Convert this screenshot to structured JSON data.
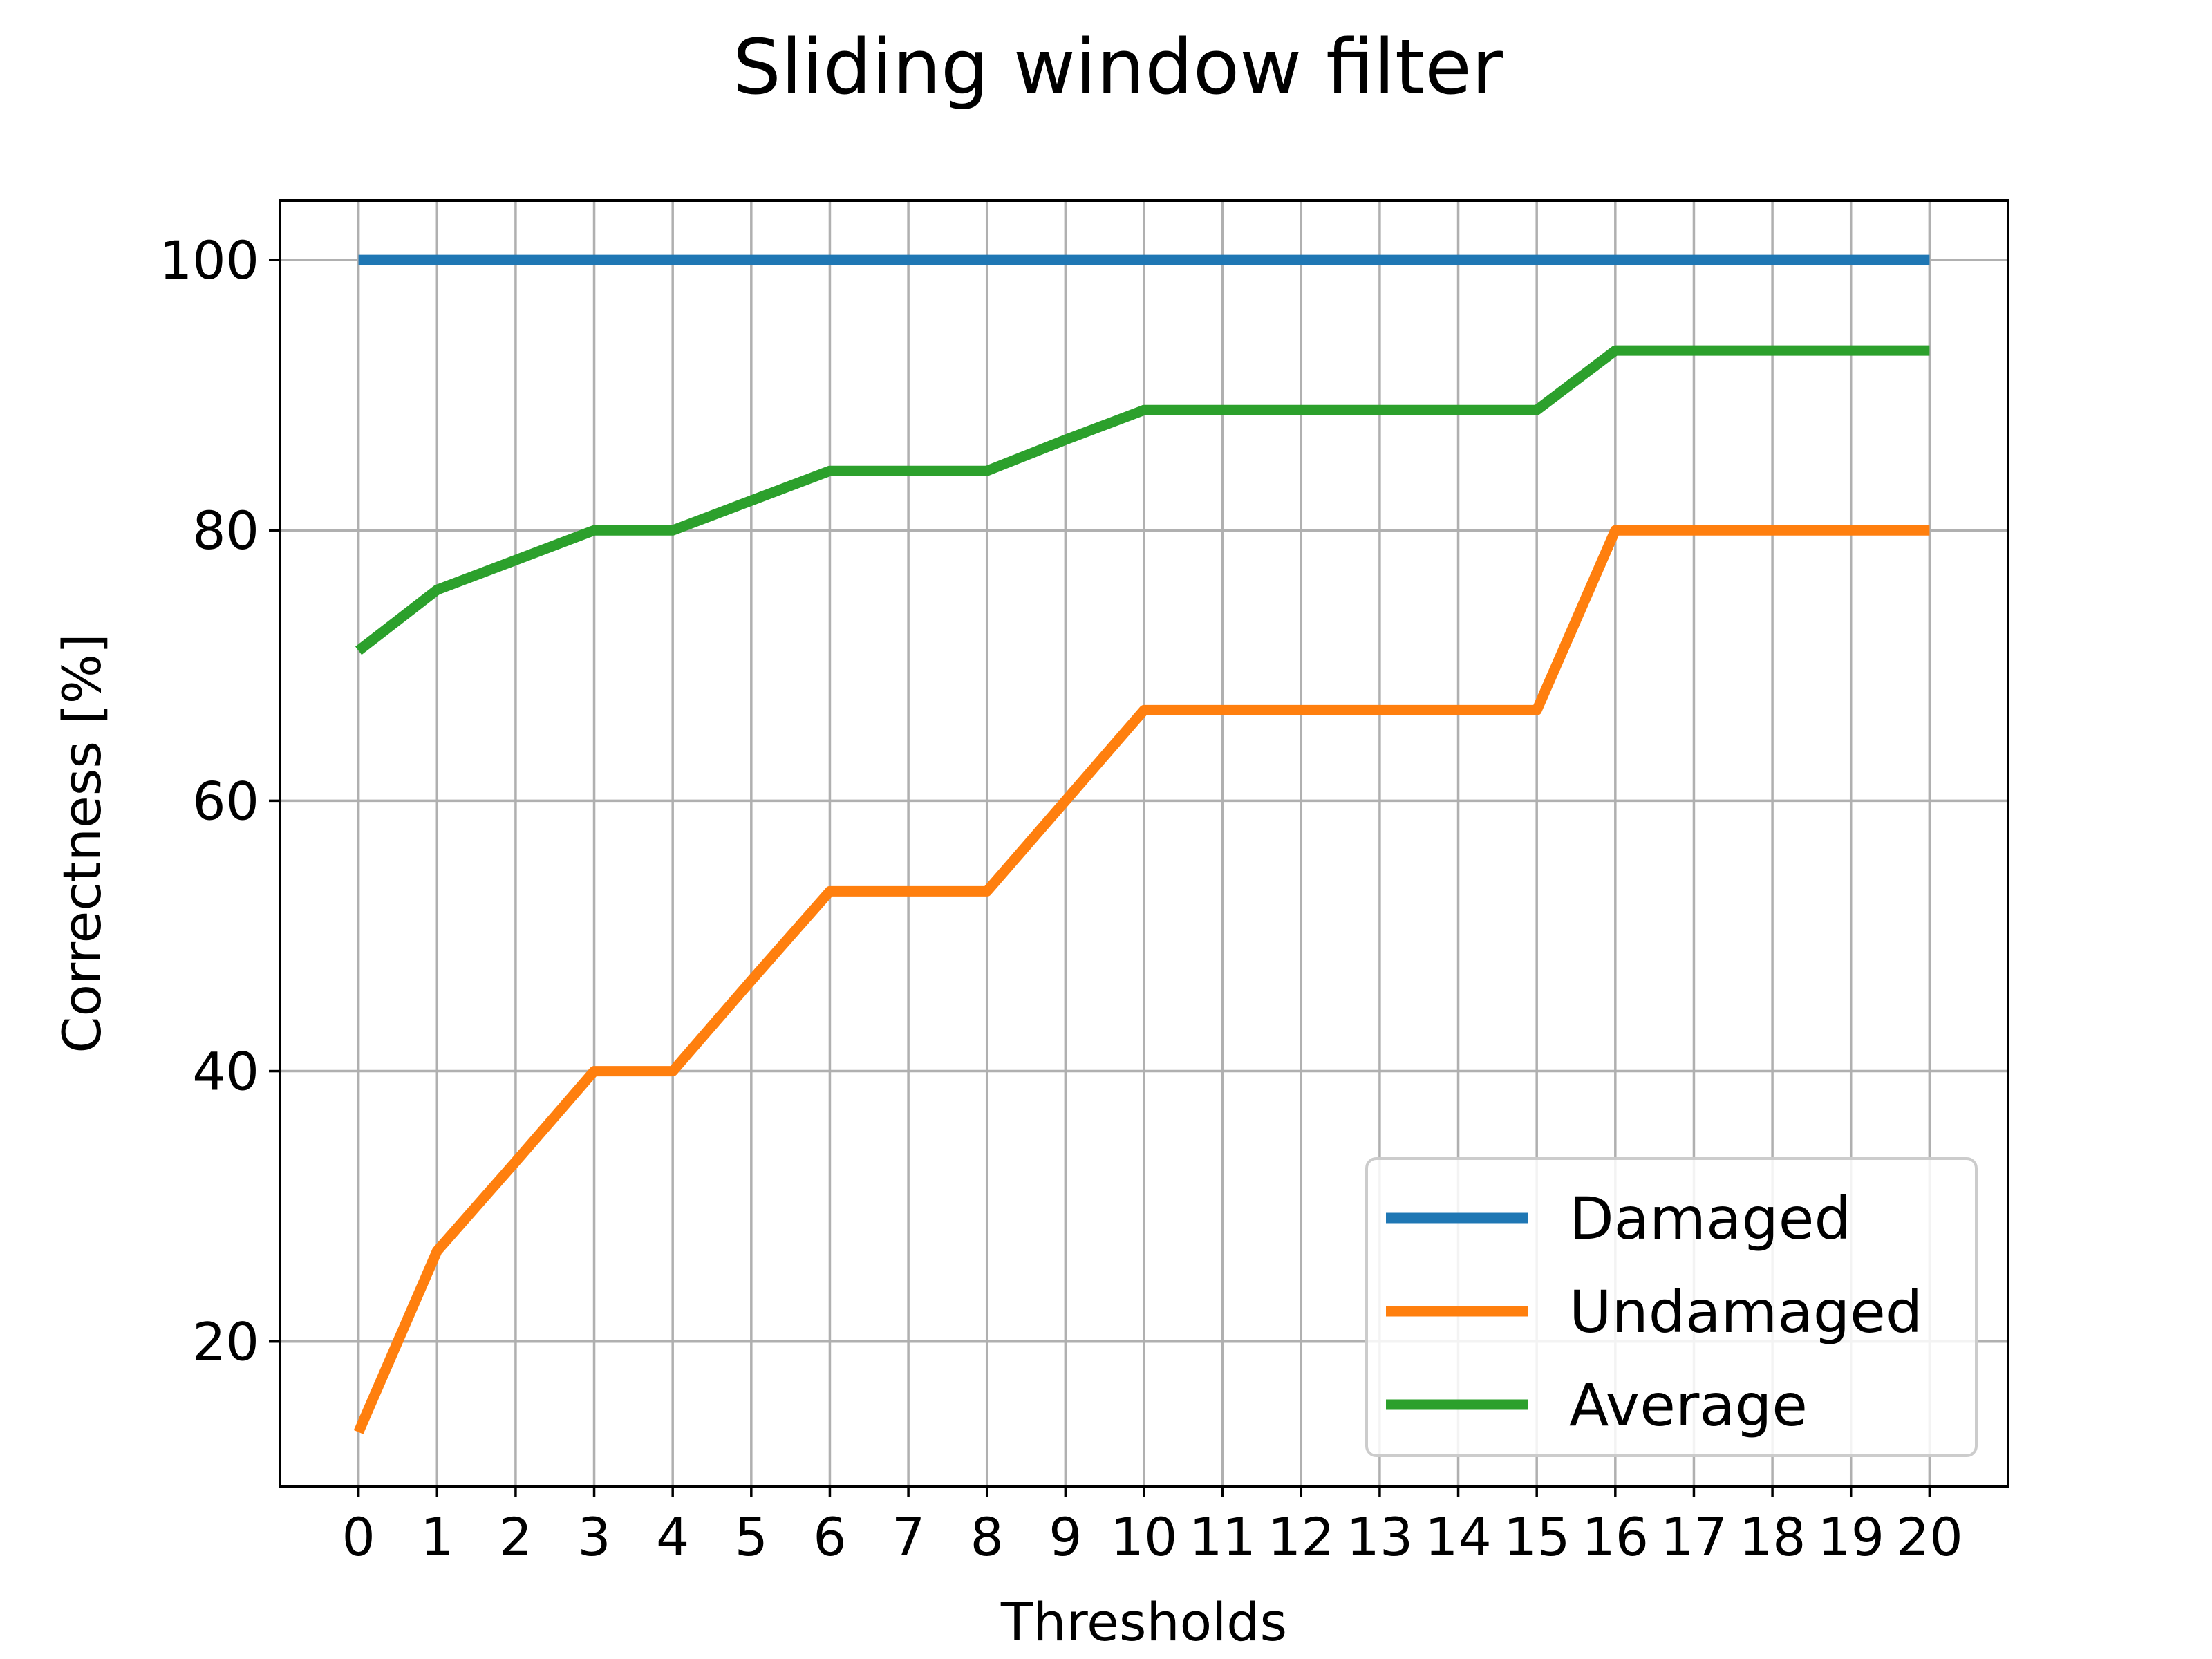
{
  "chart_data": {
    "type": "line",
    "title": "Sliding window filter",
    "xlabel": "Thresholds",
    "ylabel": "Correctness [%]",
    "x": [
      0,
      1,
      2,
      3,
      4,
      5,
      6,
      7,
      8,
      9,
      10,
      11,
      12,
      13,
      14,
      15,
      16,
      17,
      18,
      19,
      20
    ],
    "xticks": [
      "0",
      "1",
      "2",
      "3",
      "4",
      "5",
      "6",
      "7",
      "8",
      "9",
      "10",
      "11",
      "12",
      "13",
      "14",
      "15",
      "16",
      "17",
      "18",
      "19",
      "20"
    ],
    "yticks": [
      20,
      40,
      60,
      80,
      100
    ],
    "ylim": [
      9.3,
      104.4
    ],
    "xlim": [
      -1,
      21
    ],
    "grid": true,
    "legend_position": "lower-right",
    "series": [
      {
        "name": "Damaged",
        "color": "#1f77b4",
        "values": [
          100,
          100,
          100,
          100,
          100,
          100,
          100,
          100,
          100,
          100,
          100,
          100,
          100,
          100,
          100,
          100,
          100,
          100,
          100,
          100,
          100
        ]
      },
      {
        "name": "Undamaged",
        "color": "#ff7f0e",
        "values": [
          13.3,
          26.7,
          33.3,
          40,
          40,
          46.7,
          53.3,
          53.3,
          53.3,
          60,
          66.7,
          66.7,
          66.7,
          66.7,
          66.7,
          66.7,
          80,
          80,
          80,
          80,
          80
        ]
      },
      {
        "name": "Average",
        "color": "#2ca02c",
        "values": [
          71.1,
          75.6,
          77.8,
          80,
          80,
          82.2,
          84.4,
          84.4,
          84.4,
          86.7,
          88.9,
          88.9,
          88.9,
          88.9,
          88.9,
          88.9,
          93.3,
          93.3,
          93.3,
          93.3,
          93.3
        ]
      }
    ]
  }
}
